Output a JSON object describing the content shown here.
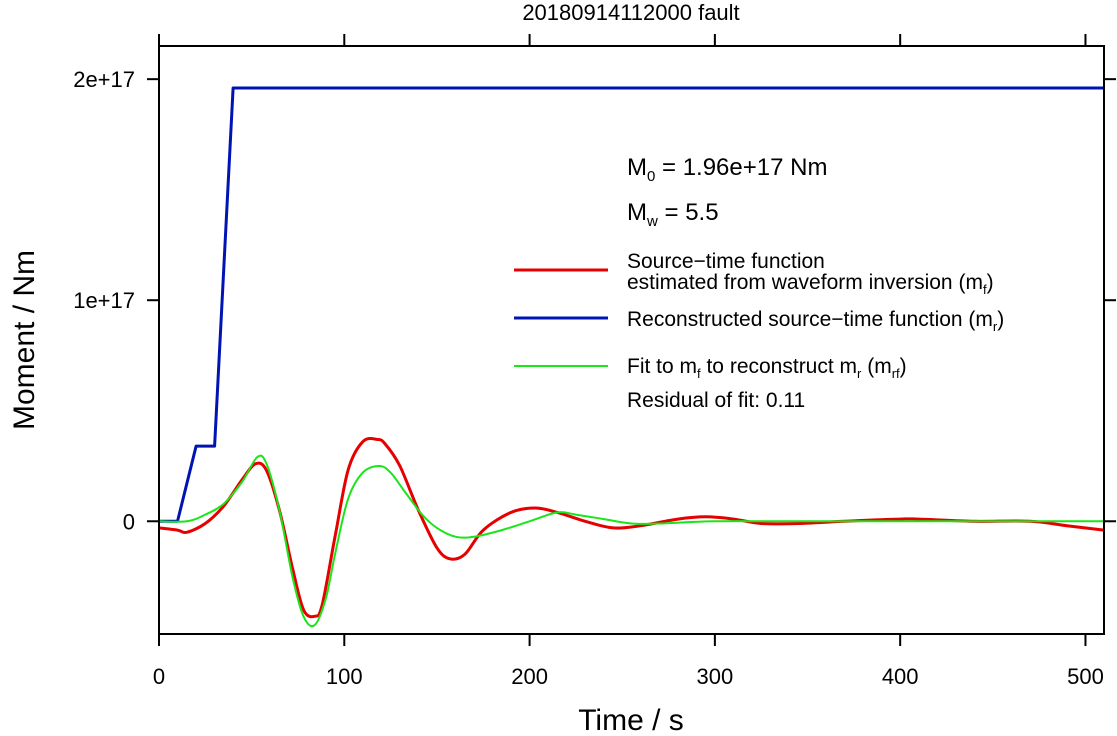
{
  "chart_data": {
    "type": "line",
    "title": "20180914112000 fault",
    "xlabel": "Time / s",
    "ylabel": "Moment / Nm",
    "xlim": [
      0,
      510
    ],
    "ylim": [
      -5.1e+16,
      2.15e+17
    ],
    "x_ticks": [
      0,
      100,
      200,
      300,
      400,
      500
    ],
    "x_tick_labels": [
      "0",
      "100",
      "200",
      "300",
      "400",
      "500"
    ],
    "y_ticks": [
      0,
      1e+17,
      2e+17
    ],
    "y_tick_labels": [
      "0",
      "1e+17",
      "2e+17"
    ],
    "grid": false,
    "legend_position": "right",
    "annotations": {
      "m0": {
        "symbol": "M",
        "sub": "0",
        "text": " = 1.96e+17 Nm"
      },
      "mw": {
        "symbol": "M",
        "sub": "w",
        "text": " = 5.5"
      },
      "residual": "Residual of fit: 0.11"
    },
    "series": [
      {
        "name": "Source−time function estimated from waveform inversion (m_f)",
        "legend_line1": "Source−time function",
        "legend_line2_pre": "estimated from waveform inversion (m",
        "legend_line2_sub": "f",
        "legend_line2_post": ")",
        "color": "#e60000",
        "x": [
          0,
          10,
          15,
          25,
          35,
          45,
          52,
          58,
          65,
          72,
          78,
          84,
          88,
          95,
          102,
          110,
          118,
          122,
          130,
          140,
          150,
          157,
          165,
          175,
          190,
          203,
          215,
          230,
          245,
          260,
          280,
          295,
          310,
          325,
          345,
          370,
          400,
          410,
          440,
          470,
          490,
          510
        ],
        "y": [
          -3000000000000000.0,
          -4000000000000000.0,
          -5000000000000000.0,
          -1000000000000000.0,
          7000000000000000.0,
          1.9e+16,
          2.6e+16,
          2.3e+16,
          5000000000000000.0,
          -2.1e+16,
          -4e+16,
          -4.3e+16,
          -3.8e+16,
          -7000000000000000.0,
          2.3e+16,
          3.6e+16,
          3.7e+16,
          3.5e+16,
          2.5e+16,
          5000000000000000.0,
          -1.2e+16,
          -1.7e+16,
          -1.5e+16,
          -4000000000000000.0,
          4000000000000000.0,
          6000000000000000.0,
          4000000000000000.0,
          0.0,
          -3000000000000000.0,
          -2000000000000000.0,
          1000000000000000.0,
          2000000000000000.0,
          1000000000000000.0,
          -1000000000000000.0,
          -1000000000000000.0,
          0.0,
          1000000000000000.0,
          1000000000000000.0,
          0.0,
          0.0,
          -2000000000000000.0,
          -4000000000000000.0
        ]
      },
      {
        "name": "Reconstructed source−time function (m_r)",
        "legend_pre": "Reconstructed source−time function (m",
        "legend_sub": "r",
        "legend_post": ")",
        "color": "#0014b4",
        "x": [
          0,
          10,
          20,
          30,
          40,
          510
        ],
        "y": [
          0,
          0,
          3.4e+16,
          3.4e+16,
          1.96e+17,
          1.96e+17
        ]
      },
      {
        "name": "Fit to m_f to reconstruct m_r (m_rf)",
        "legend_pre": "Fit to m",
        "legend_sub1": "f",
        "legend_mid": " to reconstruct m",
        "legend_sub2": "r",
        "legend_mid2": " (m",
        "legend_sub3": "rf",
        "legend_post": ")",
        "color": "#19e619",
        "x": [
          0,
          15,
          25,
          35,
          45,
          53,
          58,
          65,
          72,
          78,
          84,
          90,
          95,
          102,
          110,
          119,
          125,
          133,
          142,
          150,
          160,
          170,
          185,
          200,
          215,
          225,
          240,
          255,
          270,
          300,
          340,
          400,
          450,
          510
        ],
        "y": [
          0,
          0,
          3000000000000000.0,
          8000000000000000.0,
          1.8e+16,
          2.9e+16,
          2.6e+16,
          5000000000000000.0,
          -2.5e+16,
          -4.3e+16,
          -4.7e+16,
          -3.5e+16,
          -1.5e+16,
          1e+16,
          2.2e+16,
          2.5e+16,
          2.2e+16,
          1.3e+16,
          3000000000000000.0,
          -3000000000000000.0,
          -7000000000000000.0,
          -7000000000000000.0,
          -4000000000000000.0,
          0.0,
          4000000000000000.0,
          3000000000000000.0,
          1000000000000000.0,
          -1000000000000000.0,
          -1000000000000000.0,
          0.0,
          0.0,
          0.0,
          0.0,
          0.0
        ]
      }
    ]
  }
}
